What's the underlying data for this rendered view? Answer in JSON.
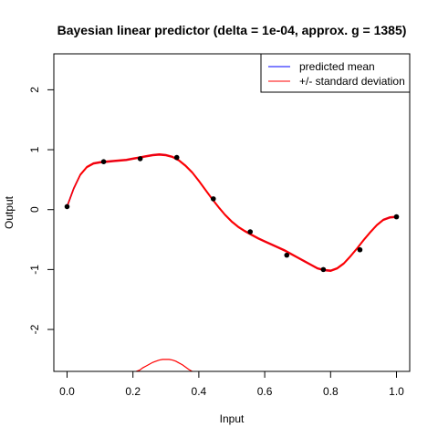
{
  "chart_data": {
    "type": "line",
    "title": "Bayesian linear predictor (delta = 1e-04, approx. g = 1385)",
    "xlabel": "Input",
    "ylabel": "Output",
    "xlim": [
      0.0,
      1.0
    ],
    "ylim": [
      -2.7,
      2.6
    ],
    "x_ticks": [
      0.0,
      0.2,
      0.4,
      0.6,
      0.8,
      1.0
    ],
    "x_tick_labels": [
      "0.0",
      "0.2",
      "0.4",
      "0.6",
      "0.8",
      "1.0"
    ],
    "y_ticks": [
      -2,
      -1,
      0,
      1,
      2
    ],
    "y_tick_labels": [
      "-2",
      "-1",
      "0",
      "1",
      "2"
    ],
    "grid": false,
    "legend_position": "top-right",
    "legend": [
      {
        "label": "predicted mean",
        "color": "#0000ff"
      },
      {
        "label": "+/- standard deviation",
        "color": "#ff0000"
      }
    ],
    "points": {
      "x": [
        0.0,
        0.111,
        0.222,
        0.333,
        0.444,
        0.556,
        0.667,
        0.778,
        0.889,
        1.0
      ],
      "y": [
        0.05,
        0.8,
        0.85,
        0.87,
        0.18,
        -0.37,
        -0.76,
        -1.0,
        -0.67,
        -0.12
      ],
      "color": "#000000"
    },
    "series": [
      {
        "name": "predicted mean",
        "color": "#0000ff",
        "x": [
          0.0,
          0.02,
          0.04,
          0.06,
          0.08,
          0.1,
          0.12,
          0.14,
          0.16,
          0.18,
          0.2,
          0.22,
          0.24,
          0.26,
          0.28,
          0.3,
          0.32,
          0.34,
          0.36,
          0.38,
          0.4,
          0.42,
          0.44,
          0.46,
          0.48,
          0.5,
          0.52,
          0.54,
          0.56,
          0.58,
          0.6,
          0.62,
          0.64,
          0.66,
          0.68,
          0.7,
          0.72,
          0.74,
          0.76,
          0.78,
          0.8,
          0.82,
          0.84,
          0.86,
          0.88,
          0.9,
          0.92,
          0.94,
          0.96,
          0.98,
          1.0
        ],
        "y": [
          0.05,
          0.35,
          0.58,
          0.71,
          0.77,
          0.79,
          0.8,
          0.81,
          0.82,
          0.83,
          0.85,
          0.87,
          0.89,
          0.91,
          0.92,
          0.91,
          0.88,
          0.82,
          0.73,
          0.62,
          0.48,
          0.33,
          0.18,
          0.04,
          -0.09,
          -0.2,
          -0.29,
          -0.36,
          -0.42,
          -0.48,
          -0.53,
          -0.58,
          -0.63,
          -0.68,
          -0.74,
          -0.8,
          -0.86,
          -0.92,
          -0.98,
          -1.01,
          -1.02,
          -0.98,
          -0.9,
          -0.78,
          -0.65,
          -0.51,
          -0.38,
          -0.26,
          -0.17,
          -0.13,
          -0.12
        ]
      },
      {
        "name": "+/- standard deviation",
        "color": "#ff0000",
        "x": [
          0.0,
          0.02,
          0.04,
          0.06,
          0.08,
          0.1,
          0.12,
          0.14,
          0.16,
          0.18,
          0.2,
          0.22,
          0.24,
          0.26,
          0.28,
          0.3,
          0.32,
          0.34,
          0.36,
          0.38,
          0.4,
          0.42,
          0.44,
          0.46,
          0.48,
          0.5,
          0.52,
          0.54,
          0.56,
          0.58,
          0.6,
          0.62,
          0.64,
          0.66,
          0.68,
          0.7,
          0.72,
          0.74,
          0.76,
          0.78,
          0.8,
          0.82,
          0.84,
          0.86,
          0.88,
          0.9,
          0.92,
          0.94,
          0.96,
          0.98,
          1.0
        ],
        "y": [
          0.06,
          0.36,
          0.59,
          0.72,
          0.78,
          0.8,
          0.81,
          0.82,
          0.83,
          0.84,
          0.86,
          0.88,
          0.9,
          0.92,
          0.93,
          0.92,
          0.89,
          0.83,
          0.74,
          0.63,
          0.49,
          0.34,
          0.19,
          0.05,
          -0.08,
          -0.19,
          -0.28,
          -0.35,
          -0.41,
          -0.47,
          -0.52,
          -0.57,
          -0.62,
          -0.67,
          -0.73,
          -0.79,
          -0.85,
          -0.91,
          -0.97,
          -1.0,
          -1.01,
          -0.97,
          -0.89,
          -0.77,
          -0.64,
          -0.5,
          -0.37,
          -0.25,
          -0.16,
          -0.12,
          -0.11
        ]
      },
      {
        "name": "+/- standard deviation",
        "color": "#ff0000",
        "x": [
          0.0,
          0.02,
          0.04,
          0.06,
          0.08,
          0.1,
          0.12,
          0.14,
          0.16,
          0.18,
          0.2,
          0.22,
          0.24,
          0.26,
          0.28,
          0.3,
          0.32,
          0.34,
          0.36,
          0.38,
          0.4,
          0.42,
          0.44,
          0.46,
          0.48,
          0.5,
          0.52,
          0.54,
          0.56,
          0.58,
          0.6,
          0.62,
          0.64,
          0.66,
          0.68,
          0.7,
          0.72,
          0.74,
          0.76,
          0.78,
          0.8,
          0.82,
          0.84,
          0.86,
          0.88,
          0.9,
          0.92,
          0.94,
          0.96,
          0.98,
          1.0
        ],
        "y": [
          0.04,
          0.34,
          0.57,
          0.7,
          0.76,
          0.78,
          0.79,
          0.8,
          0.81,
          0.82,
          0.84,
          0.86,
          0.88,
          0.9,
          0.91,
          0.9,
          0.87,
          0.81,
          0.72,
          0.61,
          0.47,
          0.32,
          0.17,
          0.03,
          -0.1,
          -0.21,
          -0.3,
          -0.37,
          -0.43,
          -0.49,
          -0.54,
          -0.59,
          -0.64,
          -0.69,
          -0.75,
          -0.81,
          -0.87,
          -0.93,
          -0.99,
          -1.02,
          -1.03,
          -0.99,
          -0.91,
          -0.79,
          -0.66,
          -0.52,
          -0.39,
          -0.27,
          -0.18,
          -0.14,
          -0.13
        ]
      },
      {
        "name": "",
        "color": "#ff0000",
        "x": [
          0.21,
          0.22,
          0.23,
          0.24,
          0.25,
          0.26,
          0.27,
          0.28,
          0.29,
          0.3,
          0.31,
          0.32,
          0.33,
          0.34,
          0.35,
          0.36,
          0.37,
          0.38
        ],
        "y": [
          -2.72,
          -2.68,
          -2.64,
          -2.61,
          -2.58,
          -2.55,
          -2.53,
          -2.51,
          -2.5,
          -2.5,
          -2.5,
          -2.51,
          -2.53,
          -2.56,
          -2.59,
          -2.63,
          -2.67,
          -2.72
        ]
      }
    ]
  }
}
